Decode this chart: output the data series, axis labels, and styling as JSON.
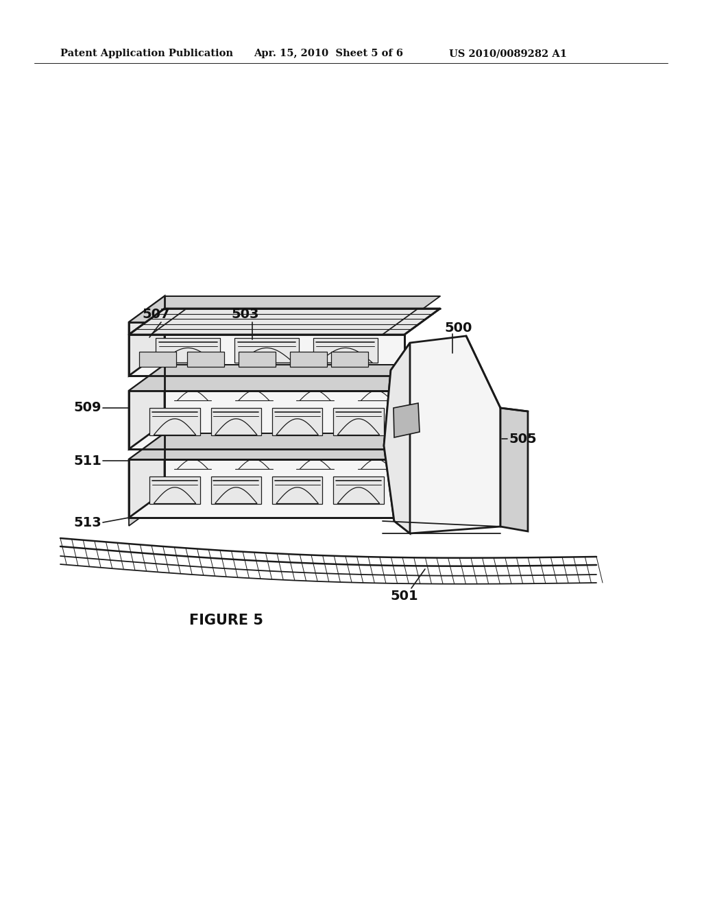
{
  "bg_color": "#ffffff",
  "header_left": "Patent Application Publication",
  "header_center": "Apr. 15, 2010  Sheet 5 of 6",
  "header_right": "US 2010/0089282 A1",
  "figure_label": "FIGURE 5",
  "label_fontsize": 14,
  "header_fontsize": 10.5,
  "figure_label_fontsize": 15,
  "line_color": "#1a1a1a",
  "fill_light": "#f5f5f5",
  "fill_mid": "#e8e8e8",
  "fill_dark": "#d0d0d0",
  "fill_darker": "#b8b8b8"
}
